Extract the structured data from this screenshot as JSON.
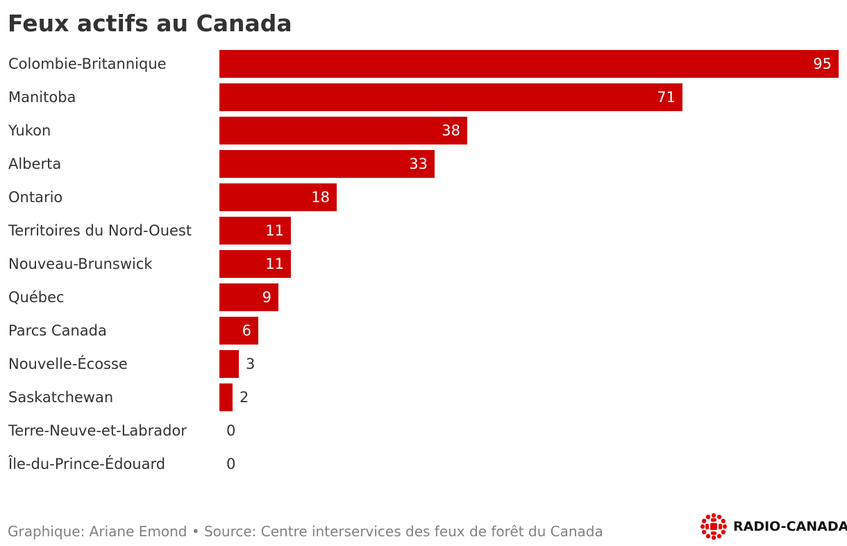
{
  "chart_data": {
    "type": "bar",
    "orientation": "horizontal",
    "title": "Feux actifs au Canada",
    "categories": [
      "Colombie-Britannique",
      "Manitoba",
      "Yukon",
      "Alberta",
      "Ontario",
      "Territoires du Nord-Ouest",
      "Nouveau-Brunswick",
      "Québec",
      "Parcs Canada",
      "Nouvelle-Écosse",
      "Saskatchewan",
      "Terre-Neuve-et-Labrador",
      "Île-du-Prince-Édouard"
    ],
    "values": [
      95,
      71,
      38,
      33,
      18,
      11,
      11,
      9,
      6,
      3,
      2,
      0,
      0
    ],
    "xlim": [
      0,
      95
    ],
    "data_labels": true,
    "grid": false,
    "legend": "none",
    "bar_color": "#cc0000"
  },
  "footer": {
    "text": "Graphique: Ariane Emond • Source: Centre interservices des feux de forêt du Canada"
  },
  "logo": {
    "text": "RADIO-CANADA",
    "icon": "radio-canada-gem-icon",
    "color": "#e60000"
  }
}
